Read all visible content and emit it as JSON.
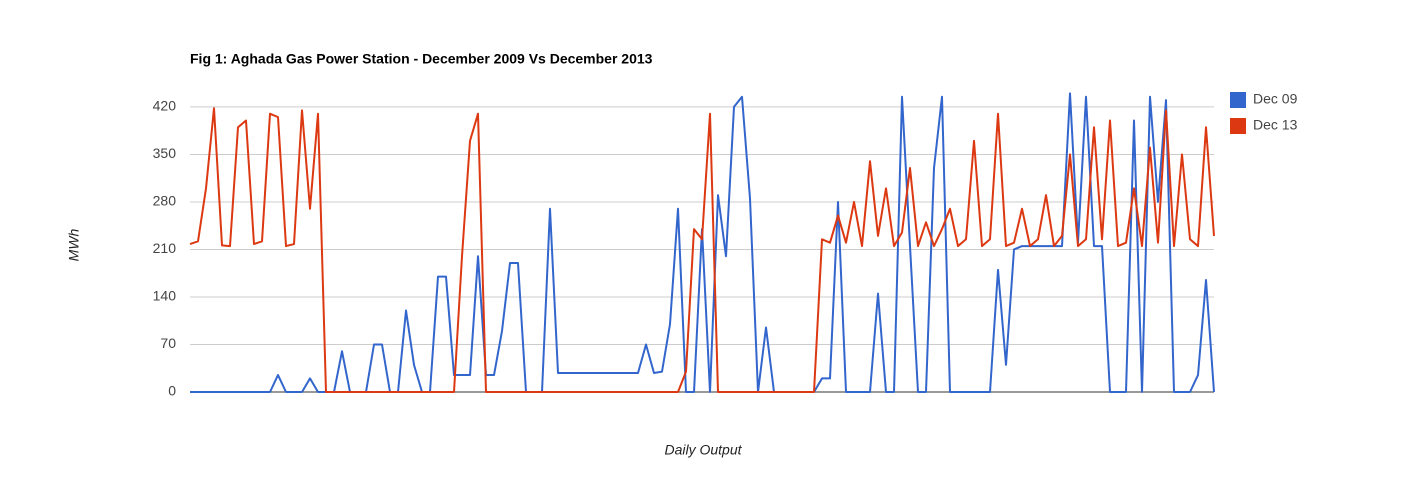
{
  "chart_data": {
    "type": "line",
    "title": "Fig 1: Aghada Gas Power Station - December 2009 Vs December 2013",
    "xlabel": "Daily Output",
    "ylabel": "MWh",
    "ylim": [
      0,
      442
    ],
    "yticks": [
      0,
      70,
      140,
      210,
      280,
      350,
      420
    ],
    "grid": true,
    "legend": "right",
    "series": [
      {
        "name": "Dec 09",
        "color": "#3366cc",
        "values": [
          0,
          0,
          0,
          0,
          0,
          0,
          0,
          0,
          0,
          0,
          0,
          25,
          0,
          0,
          0,
          20,
          0,
          0,
          0,
          60,
          0,
          0,
          0,
          70,
          70,
          0,
          0,
          120,
          40,
          0,
          0,
          170,
          170,
          25,
          25,
          25,
          200,
          25,
          25,
          90,
          190,
          190,
          0,
          0,
          0,
          270,
          28,
          28,
          28,
          28,
          28,
          28,
          28,
          28,
          28,
          28,
          28,
          70,
          28,
          30,
          100,
          270,
          0,
          0,
          240,
          0,
          290,
          200,
          420,
          435,
          285,
          0,
          95,
          0,
          0,
          0,
          0,
          0,
          0,
          20,
          20,
          280,
          0,
          0,
          0,
          0,
          145,
          0,
          0,
          435,
          215,
          0,
          0,
          330,
          435,
          0,
          0,
          0,
          0,
          0,
          0,
          180,
          40,
          210,
          215,
          215,
          215,
          215,
          215,
          215,
          440,
          220,
          435,
          215,
          215,
          0,
          0,
          0,
          400,
          0,
          435,
          280,
          430,
          0,
          0,
          0,
          25,
          165,
          0
        ]
      },
      {
        "name": "Dec 13",
        "color": "#dc3912",
        "values": [
          218,
          222,
          300,
          418,
          216,
          215,
          390,
          400,
          218,
          222,
          410,
          405,
          215,
          218,
          415,
          270,
          410,
          0,
          0,
          0,
          0,
          0,
          0,
          0,
          0,
          0,
          0,
          0,
          0,
          0,
          0,
          0,
          0,
          0,
          200,
          370,
          410,
          0,
          0,
          0,
          0,
          0,
          0,
          0,
          0,
          0,
          0,
          0,
          0,
          0,
          0,
          0,
          0,
          0,
          0,
          0,
          0,
          0,
          0,
          0,
          0,
          0,
          30,
          240,
          225,
          410,
          0,
          0,
          0,
          0,
          0,
          0,
          0,
          0,
          0,
          0,
          0,
          0,
          0,
          225,
          220,
          260,
          220,
          280,
          215,
          340,
          230,
          300,
          215,
          235,
          330,
          215,
          250,
          215,
          240,
          270,
          215,
          225,
          370,
          215,
          225,
          410,
          215,
          220,
          270,
          215,
          225,
          290,
          215,
          230,
          350,
          215,
          225,
          390,
          225,
          400,
          215,
          220,
          300,
          215,
          360,
          220,
          415,
          215,
          350,
          225,
          215,
          390,
          230
        ]
      }
    ]
  }
}
